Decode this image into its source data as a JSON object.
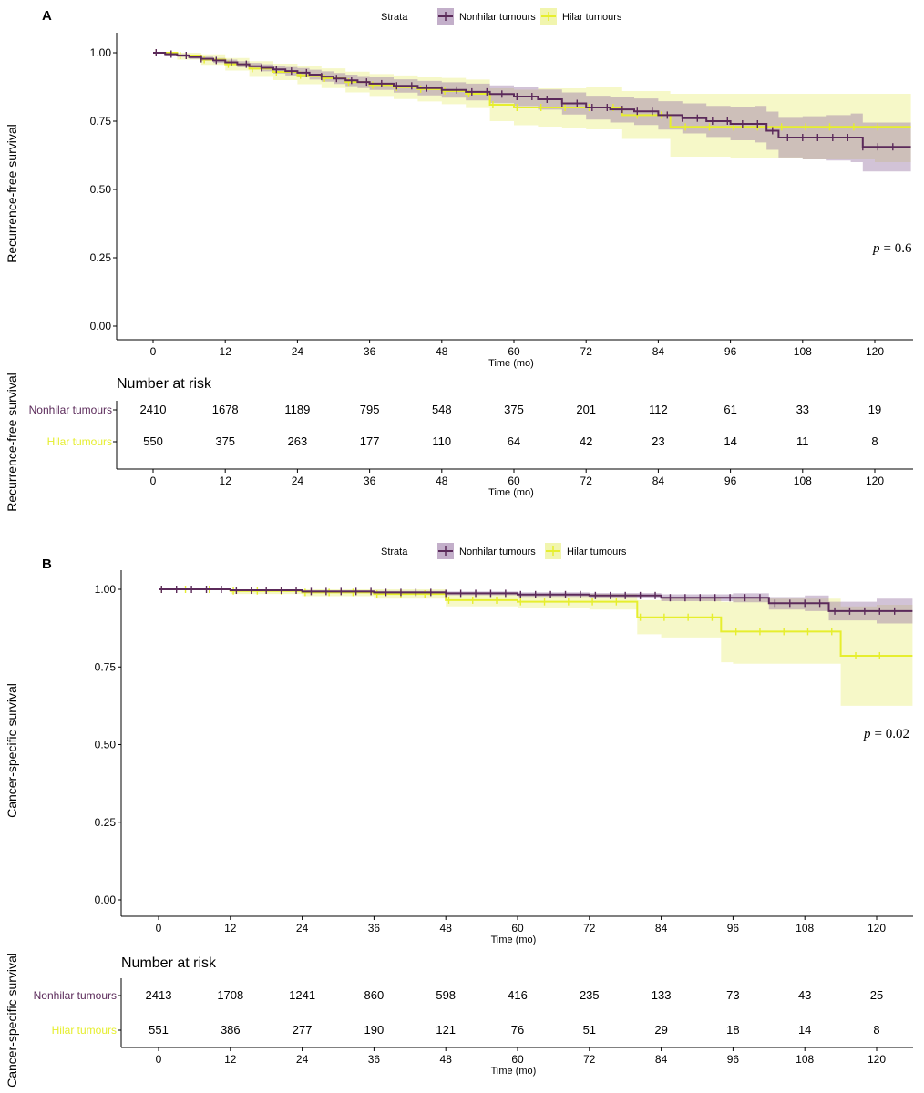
{
  "figure": {
    "legend_title": "Strata",
    "colors": {
      "nonhilar": "#5b2a5a",
      "nonhilar_band": "#9b7aa6",
      "hilar": "#e6ee2e",
      "hilar_band": "#eef39a"
    }
  },
  "chart_data": [
    {
      "panel": "A",
      "type": "line",
      "step": true,
      "title": "",
      "xlabel": "Time (mo)",
      "ylabel": "Recurrence-free survival",
      "xlim": [
        -6,
        126
      ],
      "ylim": [
        0,
        1
      ],
      "x_ticks": [
        0,
        12,
        24,
        36,
        48,
        60,
        72,
        84,
        96,
        108,
        120
      ],
      "y_ticks": [
        "0.00",
        "0.25",
        "0.50",
        "0.75",
        "1.00"
      ],
      "legend": [
        "Nonhilar tumours",
        "Hilar tumours"
      ],
      "p_label": "p",
      "p_value": "= 0.6",
      "series": [
        {
          "name": "Nonhilar tumours",
          "x": [
            0,
            2,
            4,
            6,
            8,
            10,
            12,
            14,
            16,
            18,
            20,
            22,
            24,
            26,
            28,
            30,
            32,
            34,
            36,
            40,
            44,
            48,
            52,
            56,
            60,
            64,
            68,
            72,
            76,
            80,
            84,
            88,
            92,
            96,
            100,
            102,
            104,
            108,
            112,
            116,
            118,
            120,
            126
          ],
          "y": [
            1.0,
            0.995,
            0.99,
            0.984,
            0.978,
            0.972,
            0.965,
            0.958,
            0.951,
            0.945,
            0.939,
            0.933,
            0.927,
            0.92,
            0.913,
            0.906,
            0.899,
            0.893,
            0.887,
            0.879,
            0.871,
            0.864,
            0.857,
            0.849,
            0.84,
            0.83,
            0.815,
            0.8,
            0.793,
            0.786,
            0.772,
            0.761,
            0.75,
            0.74,
            0.74,
            0.715,
            0.69,
            0.69,
            0.69,
            0.69,
            0.656,
            0.656,
            0.656
          ],
          "lower": [
            1.0,
            0.99,
            0.984,
            0.977,
            0.97,
            0.963,
            0.955,
            0.947,
            0.939,
            0.932,
            0.924,
            0.917,
            0.91,
            0.902,
            0.894,
            0.886,
            0.878,
            0.871,
            0.864,
            0.854,
            0.844,
            0.836,
            0.826,
            0.816,
            0.805,
            0.792,
            0.774,
            0.756,
            0.745,
            0.736,
            0.719,
            0.705,
            0.692,
            0.68,
            0.672,
            0.645,
            0.617,
            0.61,
            0.606,
            0.6,
            0.566,
            0.566,
            0.566
          ],
          "upper": [
            1.0,
            0.999,
            0.996,
            0.991,
            0.986,
            0.981,
            0.975,
            0.969,
            0.963,
            0.958,
            0.953,
            0.948,
            0.944,
            0.938,
            0.932,
            0.926,
            0.92,
            0.915,
            0.91,
            0.903,
            0.897,
            0.892,
            0.887,
            0.881,
            0.874,
            0.866,
            0.855,
            0.843,
            0.838,
            0.833,
            0.823,
            0.815,
            0.806,
            0.8,
            0.806,
            0.785,
            0.762,
            0.768,
            0.772,
            0.778,
            0.745,
            0.745,
            0.745
          ]
        },
        {
          "name": "Hilar tumours",
          "x": [
            0,
            4,
            8,
            12,
            16,
            20,
            24,
            28,
            32,
            36,
            40,
            44,
            48,
            52,
            56,
            60,
            64,
            68,
            72,
            78,
            86,
            96,
            108,
            120,
            126
          ],
          "y": [
            1.0,
            0.99,
            0.975,
            0.958,
            0.942,
            0.93,
            0.918,
            0.907,
            0.893,
            0.882,
            0.874,
            0.867,
            0.86,
            0.85,
            0.81,
            0.8,
            0.8,
            0.8,
            0.8,
            0.772,
            0.729,
            0.729,
            0.729,
            0.729,
            0.729
          ],
          "lower": [
            1.0,
            0.975,
            0.956,
            0.935,
            0.915,
            0.9,
            0.885,
            0.871,
            0.855,
            0.842,
            0.831,
            0.822,
            0.812,
            0.798,
            0.75,
            0.735,
            0.73,
            0.725,
            0.72,
            0.685,
            0.62,
            0.615,
            0.61,
            0.6,
            0.6
          ],
          "upper": [
            1.0,
            1.0,
            0.994,
            0.981,
            0.969,
            0.96,
            0.951,
            0.943,
            0.931,
            0.922,
            0.917,
            0.912,
            0.908,
            0.902,
            0.87,
            0.865,
            0.87,
            0.87,
            0.875,
            0.86,
            0.85,
            0.85,
            0.85,
            0.85,
            0.85
          ]
        }
      ],
      "risk_table": {
        "title": "Number at risk",
        "ylabel": "Recurrence-free survival",
        "xlabel": "Time (mo)",
        "times": [
          0,
          12,
          24,
          36,
          48,
          60,
          72,
          84,
          96,
          108,
          120
        ],
        "rows": [
          {
            "name": "Nonhilar tumours",
            "counts": [
              2410,
              1678,
              1189,
              795,
              548,
              375,
              201,
              112,
              61,
              33,
              19
            ]
          },
          {
            "name": "Hilar tumours",
            "counts": [
              550,
              375,
              263,
              177,
              110,
              64,
              42,
              23,
              14,
              11,
              8
            ]
          }
        ]
      }
    },
    {
      "panel": "B",
      "type": "line",
      "step": true,
      "title": "",
      "xlabel": "Time (mo)",
      "ylabel": "Cancer-specific survival",
      "xlim": [
        -6,
        126
      ],
      "ylim": [
        0,
        1
      ],
      "x_ticks": [
        0,
        12,
        24,
        36,
        48,
        60,
        72,
        84,
        96,
        108,
        120
      ],
      "y_ticks": [
        "0.00",
        "0.25",
        "0.50",
        "0.75",
        "1.00"
      ],
      "legend": [
        "Nonhilar tumours",
        "Hilar tumours"
      ],
      "p_label": "p",
      "p_value": "= 0.02",
      "series": [
        {
          "name": "Nonhilar tumours",
          "x": [
            0,
            12,
            24,
            36,
            48,
            60,
            72,
            84,
            96,
            102,
            108,
            112,
            120,
            126
          ],
          "y": [
            1.0,
            0.997,
            0.993,
            0.99,
            0.987,
            0.983,
            0.98,
            0.973,
            0.973,
            0.955,
            0.955,
            0.93,
            0.93,
            0.93
          ],
          "lower": [
            1.0,
            0.994,
            0.989,
            0.985,
            0.981,
            0.976,
            0.971,
            0.962,
            0.958,
            0.935,
            0.93,
            0.9,
            0.89,
            0.885
          ],
          "upper": [
            1.0,
            1.0,
            0.997,
            0.995,
            0.993,
            0.99,
            0.988,
            0.984,
            0.987,
            0.975,
            0.98,
            0.96,
            0.97,
            0.99
          ]
        },
        {
          "name": "Hilar tumours",
          "x": [
            0,
            12,
            24,
            36,
            48,
            60,
            72,
            80,
            84,
            94,
            96,
            108,
            114,
            120,
            126
          ],
          "y": [
            1.0,
            0.995,
            0.99,
            0.985,
            0.965,
            0.96,
            0.96,
            0.91,
            0.91,
            0.864,
            0.864,
            0.864,
            0.786,
            0.786,
            0.786
          ],
          "lower": [
            1.0,
            0.985,
            0.978,
            0.97,
            0.945,
            0.94,
            0.935,
            0.855,
            0.845,
            0.765,
            0.76,
            0.76,
            0.625,
            0.625,
            0.625
          ],
          "upper": [
            1.0,
            1.0,
            1.0,
            1.0,
            0.985,
            0.98,
            0.985,
            0.965,
            0.975,
            0.96,
            0.97,
            0.97,
            0.945,
            0.95,
            0.95
          ]
        }
      ],
      "risk_table": {
        "title": "Number at risk",
        "ylabel": "Cancer-specific survival",
        "xlabel": "Time (mo)",
        "times": [
          0,
          12,
          24,
          36,
          48,
          60,
          72,
          84,
          96,
          108,
          120
        ],
        "rows": [
          {
            "name": "Nonhilar tumours",
            "counts": [
              2413,
              1708,
              1241,
              860,
              598,
              416,
              235,
              133,
              73,
              43,
              25
            ]
          },
          {
            "name": "Hilar tumours",
            "counts": [
              551,
              386,
              277,
              190,
              121,
              76,
              51,
              29,
              18,
              14,
              8
            ]
          }
        ]
      }
    }
  ]
}
